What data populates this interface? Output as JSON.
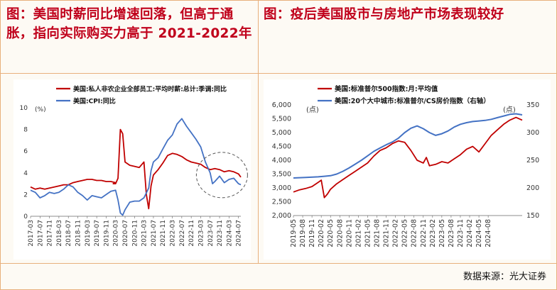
{
  "titles": {
    "left": "图：美国时薪同比增速回落，但高于通胀，指向实际购买力高于 2021-2022年",
    "right": "图：疫后美国股市与房地产市场表现较好"
  },
  "source": "数据来源：光大证券",
  "colors": {
    "red": "#c00000",
    "blue": "#4472c4",
    "title": "#c0001b"
  },
  "chart_data": [
    {
      "type": "line",
      "unit_label": "(%)",
      "ylim": [
        0,
        10
      ],
      "yticks": [
        0,
        2,
        4,
        6,
        8,
        10
      ],
      "x_tick_labels": [
        "2017-03",
        "2017-07",
        "2017-11",
        "2018-03",
        "2018-07",
        "2018-11",
        "2019-03",
        "2019-07",
        "2019-11",
        "2020-03",
        "2020-07",
        "2020-11",
        "2021-03",
        "2021-07",
        "2021-11",
        "2022-03",
        "2022-07",
        "2022-11",
        "2023-03",
        "2023-07",
        "2023-11",
        "2024-03",
        "2024-07"
      ],
      "x_start": "2017-03",
      "x_end": "2024-07",
      "series": [
        {
          "name": "美国:私人非农企业全部员工:平均时薪:总计:季调:同比",
          "color": "#c00000",
          "points": [
            [
              0,
              2.7
            ],
            [
              2,
              2.5
            ],
            [
              4,
              2.6
            ],
            [
              6,
              2.5
            ],
            [
              8,
              2.6
            ],
            [
              10,
              2.7
            ],
            [
              12,
              2.8
            ],
            [
              14,
              2.9
            ],
            [
              16,
              2.9
            ],
            [
              18,
              3.1
            ],
            [
              20,
              3.2
            ],
            [
              22,
              3.3
            ],
            [
              24,
              3.4
            ],
            [
              26,
              3.4
            ],
            [
              28,
              3.3
            ],
            [
              30,
              3.3
            ],
            [
              32,
              3.2
            ],
            [
              34,
              3.2
            ],
            [
              36,
              3.1
            ],
            [
              35,
              3.0
            ],
            [
              36,
              3.0
            ],
            [
              37,
              3.5
            ],
            [
              38,
              8.0
            ],
            [
              39,
              7.6
            ],
            [
              40,
              5.0
            ],
            [
              42,
              4.7
            ],
            [
              44,
              4.6
            ],
            [
              46,
              4.5
            ],
            [
              48,
              5.0
            ],
            [
              49,
              2.0
            ],
            [
              50,
              0.7
            ],
            [
              51,
              2.8
            ],
            [
              52,
              3.8
            ],
            [
              54,
              4.3
            ],
            [
              56,
              4.9
            ],
            [
              58,
              5.6
            ],
            [
              60,
              5.8
            ],
            [
              62,
              5.7
            ],
            [
              64,
              5.5
            ],
            [
              66,
              5.2
            ],
            [
              68,
              5.0
            ],
            [
              70,
              4.9
            ],
            [
              72,
              4.8
            ],
            [
              74,
              4.5
            ],
            [
              76,
              4.3
            ],
            [
              78,
              4.4
            ],
            [
              80,
              4.3
            ],
            [
              82,
              4.1
            ],
            [
              84,
              4.2
            ],
            [
              86,
              4.1
            ],
            [
              88,
              3.9
            ],
            [
              89,
              3.6
            ]
          ]
        },
        {
          "name": "美国:CPI:同比",
          "color": "#4472c4",
          "points": [
            [
              0,
              2.4
            ],
            [
              2,
              2.2
            ],
            [
              4,
              1.7
            ],
            [
              6,
              1.9
            ],
            [
              8,
              2.2
            ],
            [
              10,
              2.1
            ],
            [
              12,
              2.2
            ],
            [
              14,
              2.5
            ],
            [
              16,
              2.9
            ],
            [
              18,
              2.7
            ],
            [
              20,
              2.2
            ],
            [
              22,
              1.9
            ],
            [
              24,
              1.5
            ],
            [
              26,
              1.9
            ],
            [
              28,
              1.8
            ],
            [
              30,
              1.7
            ],
            [
              32,
              2.0
            ],
            [
              34,
              2.3
            ],
            [
              36,
              2.4
            ],
            [
              37,
              1.5
            ],
            [
              38,
              0.3
            ],
            [
              39,
              0.1
            ],
            [
              40,
              0.6
            ],
            [
              42,
              1.3
            ],
            [
              44,
              1.4
            ],
            [
              46,
              1.4
            ],
            [
              48,
              1.7
            ],
            [
              50,
              2.6
            ],
            [
              51,
              4.2
            ],
            [
              52,
              5.0
            ],
            [
              54,
              5.4
            ],
            [
              56,
              6.2
            ],
            [
              58,
              7.0
            ],
            [
              60,
              7.5
            ],
            [
              62,
              8.5
            ],
            [
              64,
              9.0
            ],
            [
              66,
              8.3
            ],
            [
              68,
              7.7
            ],
            [
              70,
              7.1
            ],
            [
              72,
              6.4
            ],
            [
              74,
              5.0
            ],
            [
              76,
              4.0
            ],
            [
              77,
              3.0
            ],
            [
              78,
              3.2
            ],
            [
              80,
              3.7
            ],
            [
              82,
              3.1
            ],
            [
              84,
              3.4
            ],
            [
              86,
              3.5
            ],
            [
              88,
              3.0
            ],
            [
              89,
              2.9
            ]
          ]
        }
      ],
      "annotation": "dashed ellipse around 2023-2024 segment"
    },
    {
      "type": "line",
      "left_unit": "(点)",
      "right_unit": "(点)",
      "ylim_left": [
        2000,
        6000
      ],
      "yticks_left": [
        "2,000",
        "2,500",
        "3,000",
        "3,500",
        "4,000",
        "4,500",
        "5,000",
        "5,500",
        "6,000"
      ],
      "yticks_left_values": [
        2000,
        2500,
        3000,
        3500,
        4000,
        4500,
        5000,
        5500,
        6000
      ],
      "ylim_right": [
        150,
        350
      ],
      "yticks_right": [
        150,
        200,
        250,
        300,
        350
      ],
      "x_tick_labels": [
        "2019-05",
        "2019-08",
        "2019-11",
        "2020-02",
        "2020-05",
        "2020-08",
        "2020-11",
        "2021-02",
        "2021-05",
        "2021-08",
        "2021-11",
        "2022-02",
        "2022-05",
        "2022-08",
        "2022-11",
        "2023-02",
        "2023-05",
        "2023-08",
        "2023-11",
        "2024-02",
        "2024-05",
        "2024-08"
      ],
      "x_start": "2019-05",
      "x_end": "2024-08",
      "series": [
        {
          "name": "美国:标准普尔500指数:月:平均值",
          "color": "#c00000",
          "axis": "left",
          "points": [
            [
              0,
              2850
            ],
            [
              2,
              2930
            ],
            [
              4,
              2980
            ],
            [
              6,
              3050
            ],
            [
              8,
              3200
            ],
            [
              9,
              3280
            ],
            [
              10,
              2650
            ],
            [
              11,
              2780
            ],
            [
              12,
              2950
            ],
            [
              14,
              3150
            ],
            [
              16,
              3300
            ],
            [
              18,
              3450
            ],
            [
              20,
              3600
            ],
            [
              22,
              3750
            ],
            [
              24,
              3900
            ],
            [
              26,
              4150
            ],
            [
              28,
              4350
            ],
            [
              30,
              4450
            ],
            [
              32,
              4600
            ],
            [
              34,
              4700
            ],
            [
              36,
              4650
            ],
            [
              38,
              4350
            ],
            [
              40,
              4000
            ],
            [
              42,
              3900
            ],
            [
              43,
              4100
            ],
            [
              44,
              3800
            ],
            [
              46,
              3850
            ],
            [
              48,
              3950
            ],
            [
              50,
              3900
            ],
            [
              52,
              4050
            ],
            [
              54,
              4200
            ],
            [
              56,
              4400
            ],
            [
              58,
              4500
            ],
            [
              60,
              4300
            ],
            [
              62,
              4600
            ],
            [
              64,
              4900
            ],
            [
              66,
              5100
            ],
            [
              68,
              5300
            ],
            [
              70,
              5450
            ],
            [
              72,
              5550
            ],
            [
              74,
              5450
            ]
          ]
        },
        {
          "name": "美国:20个大中城市:标准普尔/CS房价指数（右轴）",
          "color": "#4472c4",
          "axis": "right",
          "points": [
            [
              0,
              218
            ],
            [
              4,
              219
            ],
            [
              8,
              220
            ],
            [
              10,
              221
            ],
            [
              12,
              222
            ],
            [
              14,
              225
            ],
            [
              16,
              230
            ],
            [
              18,
              236
            ],
            [
              20,
              243
            ],
            [
              22,
              250
            ],
            [
              24,
              258
            ],
            [
              26,
              266
            ],
            [
              28,
              272
            ],
            [
              30,
              278
            ],
            [
              32,
              283
            ],
            [
              34,
              290
            ],
            [
              36,
              300
            ],
            [
              38,
              308
            ],
            [
              40,
              312
            ],
            [
              42,
              307
            ],
            [
              44,
              300
            ],
            [
              46,
              295
            ],
            [
              48,
              298
            ],
            [
              50,
              303
            ],
            [
              52,
              310
            ],
            [
              54,
              315
            ],
            [
              56,
              318
            ],
            [
              58,
              320
            ],
            [
              60,
              321
            ],
            [
              62,
              322
            ],
            [
              64,
              324
            ],
            [
              66,
              327
            ],
            [
              68,
              330
            ],
            [
              70,
              333
            ],
            [
              72,
              334
            ],
            [
              74,
              332
            ]
          ]
        }
      ]
    }
  ]
}
